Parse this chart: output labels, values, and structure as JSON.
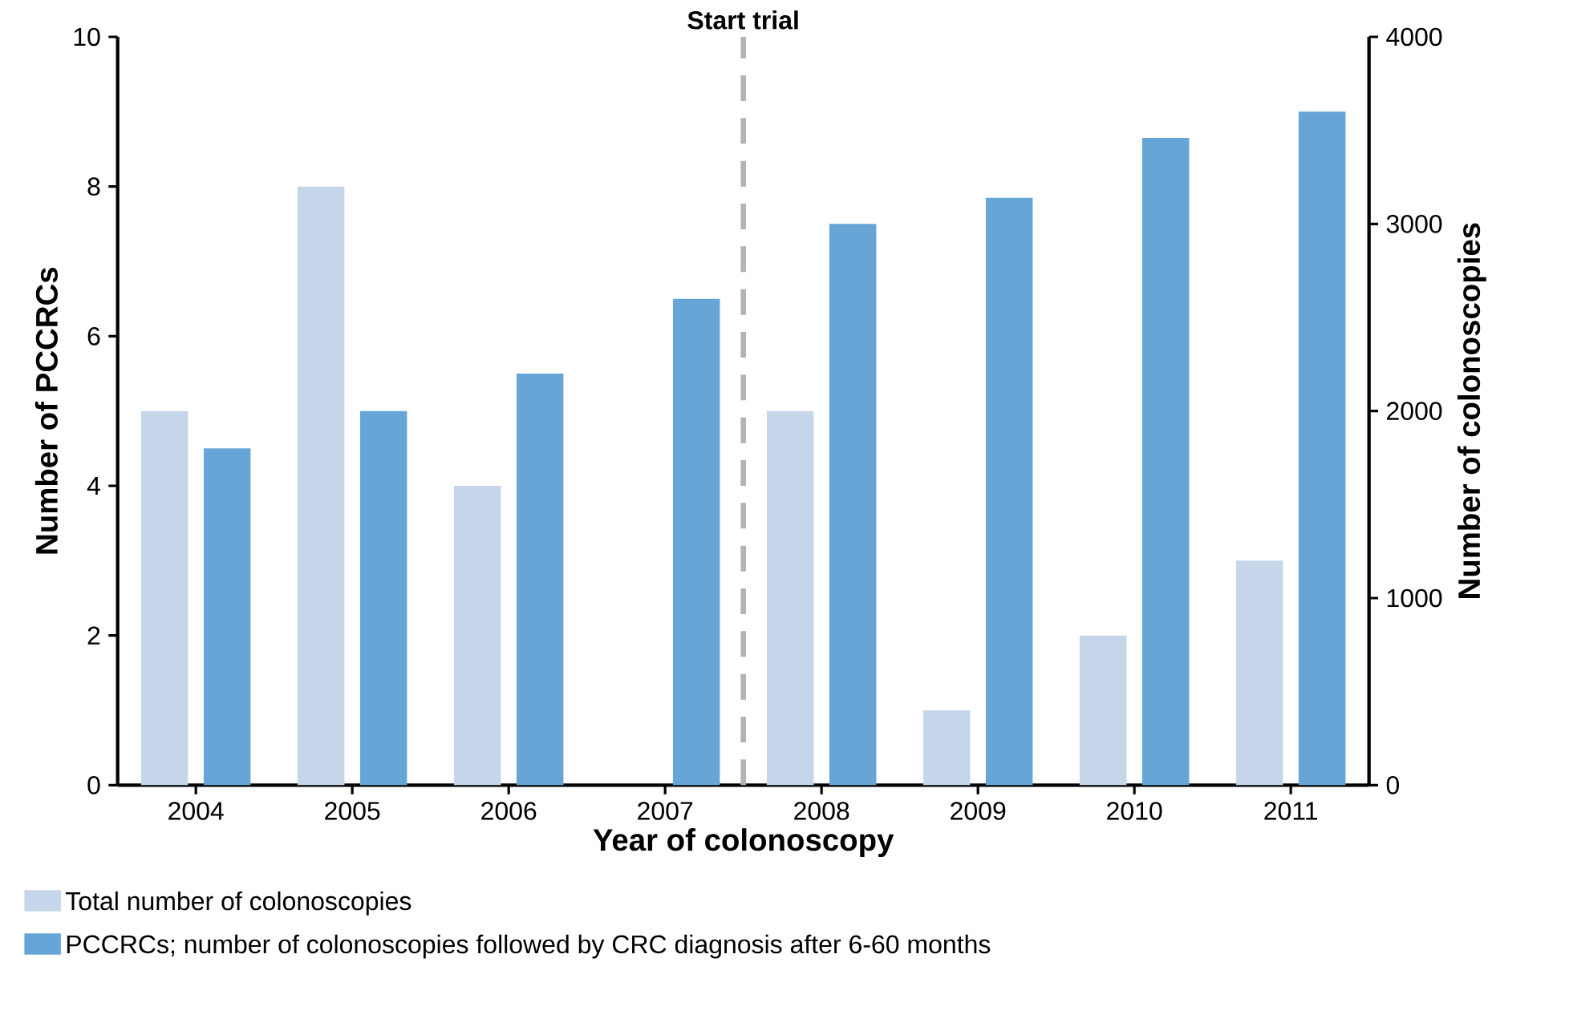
{
  "chart_data": {
    "type": "bar",
    "xlabel": "Year of colonoscopy",
    "ylabel": "Number of PCCRCs",
    "y2label": "Number of colonoscopies",
    "categories": [
      "2004",
      "2005",
      "2006",
      "2007",
      "2008",
      "2009",
      "2010",
      "2011"
    ],
    "series": [
      {
        "name": "Total number of colonoscopies",
        "color": "#c5d6eb",
        "values": [
          5,
          8,
          4,
          null,
          5,
          1,
          2,
          3
        ]
      },
      {
        "name": "PCCRCs; number of colonoscopies followed by CRC diagnosis after 6-60 months",
        "color": "#67a5d6",
        "axis": "y2",
        "values": [
          1800,
          2000,
          2200,
          2600,
          3000,
          3140,
          3460,
          3600
        ]
      }
    ],
    "ylim": [
      0,
      10
    ],
    "yticks": [
      0,
      2,
      4,
      6,
      8,
      10
    ],
    "y2lim": [
      0,
      4000
    ],
    "y2ticks": [
      0,
      1000,
      2000,
      3000,
      4000
    ],
    "annotations": [
      "Start trial"
    ],
    "legend": "bottom",
    "grid": false
  }
}
